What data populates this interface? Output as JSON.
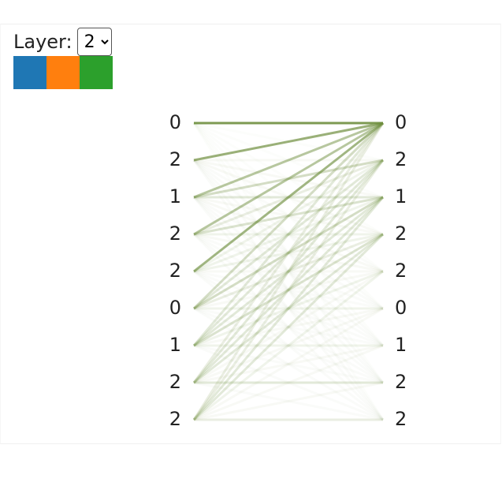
{
  "layer_label": "Layer:",
  "selected_layer": "2",
  "head_colors": [
    "#1f77b4",
    "#ff7f0e",
    "#2ca02c"
  ],
  "line_color": "#6f8f3f",
  "left_tokens": [
    "0",
    "2",
    "1",
    "2",
    "2",
    "0",
    "1",
    "2",
    "2"
  ],
  "right_tokens": [
    "0",
    "2",
    "1",
    "2",
    "2",
    "0",
    "1",
    "2",
    "2"
  ],
  "attention": [
    [
      0.9,
      0.02,
      0.02,
      0.02,
      0.02,
      0.02,
      0.02,
      0.02,
      0.02
    ],
    [
      0.7,
      0.05,
      0.05,
      0.05,
      0.03,
      0.03,
      0.03,
      0.03,
      0.03
    ],
    [
      0.5,
      0.3,
      0.2,
      0.05,
      0.05,
      0.03,
      0.03,
      0.03,
      0.03
    ],
    [
      0.5,
      0.15,
      0.25,
      0.1,
      0.05,
      0.03,
      0.03,
      0.03,
      0.03
    ],
    [
      0.65,
      0.1,
      0.1,
      0.1,
      0.05,
      0.03,
      0.03,
      0.03,
      0.03
    ],
    [
      0.3,
      0.2,
      0.3,
      0.15,
      0.05,
      0.1,
      0.03,
      0.03,
      0.03
    ],
    [
      0.2,
      0.2,
      0.2,
      0.25,
      0.1,
      0.05,
      0.1,
      0.03,
      0.03
    ],
    [
      0.15,
      0.2,
      0.2,
      0.2,
      0.05,
      0.05,
      0.05,
      0.2,
      0.03
    ],
    [
      0.15,
      0.15,
      0.2,
      0.2,
      0.1,
      0.05,
      0.05,
      0.05,
      0.15
    ]
  ]
}
